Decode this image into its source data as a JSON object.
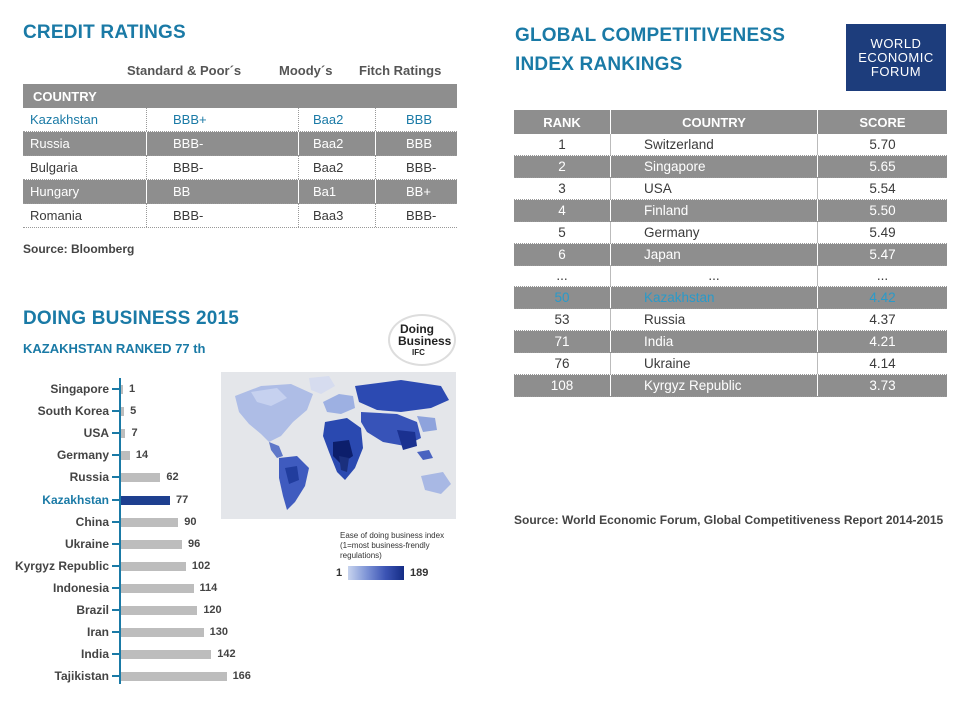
{
  "credit_ratings": {
    "title": "CREDIT RATINGS",
    "columns": [
      "Standard & Poor´s",
      "Moody´s",
      "Fitch Ratings"
    ],
    "country_header": "COUNTRY",
    "rows": [
      {
        "country": "Kazakhstan",
        "sp": "BBB+",
        "moodys": "Baa2",
        "fitch": "BBB"
      },
      {
        "country": "Russia",
        "sp": "BBB-",
        "moodys": "Baa2",
        "fitch": "BBB"
      },
      {
        "country": "Bulgaria",
        "sp": "BBB-",
        "moodys": "Baa2",
        "fitch": "BBB-"
      },
      {
        "country": "Hungary",
        "sp": "BB",
        "moodys": "Ba1",
        "fitch": "BB+"
      },
      {
        "country": "Romania",
        "sp": "BBB-",
        "moodys": "Baa3",
        "fitch": "BBB-"
      }
    ],
    "source": "Source: Bloomberg"
  },
  "gci": {
    "title_line1": "GLOBAL COMPETITIVENESS",
    "title_line2": "INDEX RANKINGS",
    "headers": [
      "RANK",
      "COUNTRY",
      "SCORE"
    ],
    "rows": [
      {
        "rank": "1",
        "country": "Switzerland",
        "score": "5.70"
      },
      {
        "rank": "2",
        "country": "Singapore",
        "score": "5.65"
      },
      {
        "rank": "3",
        "country": "USA",
        "score": "5.54"
      },
      {
        "rank": "4",
        "country": "Finland",
        "score": "5.50"
      },
      {
        "rank": "5",
        "country": "Germany",
        "score": "5.49"
      },
      {
        "rank": "6",
        "country": "Japan",
        "score": "5.47"
      },
      {
        "rank": "...",
        "country": "...",
        "score": "..."
      },
      {
        "rank": "50",
        "country": "Kazakhstan",
        "score": "4.42"
      },
      {
        "rank": "53",
        "country": "Russia",
        "score": "4.37"
      },
      {
        "rank": "71",
        "country": "India",
        "score": "4.21"
      },
      {
        "rank": "76",
        "country": "Ukraine",
        "score": "4.14"
      },
      {
        "rank": "108",
        "country": "Kyrgyz Republic",
        "score": "3.73"
      }
    ],
    "source": "Source: World Economic Forum, Global Competitiveness Report 2014-2015",
    "logo": [
      "WORLD",
      "ECONOMIC",
      "FORUM"
    ]
  },
  "doing_business": {
    "title": "DOING BUSINESS 2015",
    "subtitle": "KAZAKHSTAN RANKED 77 th",
    "logo_line1": "Doing",
    "logo_line2": "Business",
    "logo_line3": "IFC",
    "legend_title": "Ease of doing business index (1=most business-frendly regulations)",
    "legend_low": "1",
    "legend_high": "189"
  },
  "chart_data": {
    "type": "bar",
    "orientation": "horizontal",
    "title": "DOING BUSINESS 2015",
    "categories": [
      "Singapore",
      "South Korea",
      "USA",
      "Germany",
      "Russia",
      "Kazakhstan",
      "China",
      "Ukraine",
      "Kyrgyz Republic",
      "Indonesia",
      "Brazil",
      "Iran",
      "India",
      "Tajikistan"
    ],
    "values": [
      1,
      5,
      7,
      14,
      62,
      77,
      90,
      96,
      102,
      114,
      120,
      130,
      142,
      166
    ],
    "highlight": "Kazakhstan",
    "colors": {
      "default": "#bdbdbd",
      "highlight": "#1e3f8f"
    }
  }
}
